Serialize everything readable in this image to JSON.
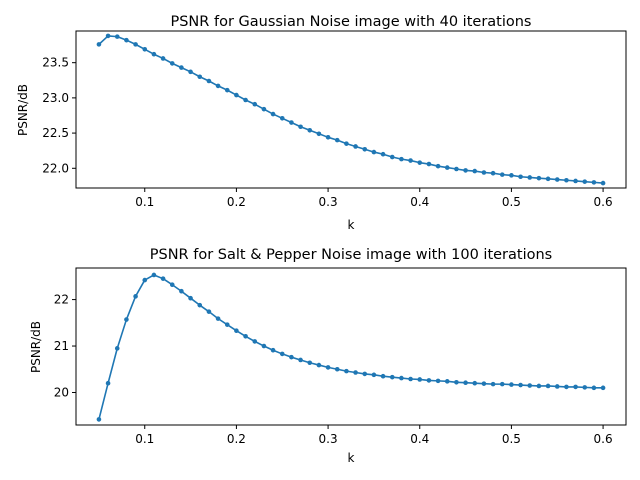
{
  "colors": {
    "series": "#1f77b4",
    "axes": "#000000",
    "background": "#ffffff"
  },
  "chart_data": [
    {
      "type": "line",
      "title": "PSNR for Gaussian Noise image with 40 iterations",
      "xlabel": "k",
      "ylabel": "PSNR/dB",
      "xlim": [
        0.025,
        0.625
      ],
      "ylim": [
        21.72,
        23.95
      ],
      "xticks": [
        0.1,
        0.2,
        0.3,
        0.4,
        0.5,
        0.6
      ],
      "xtick_labels": [
        "0.1",
        "0.2",
        "0.3",
        "0.4",
        "0.5",
        "0.6"
      ],
      "yticks": [
        22.0,
        22.5,
        23.0,
        23.5
      ],
      "ytick_labels": [
        "22.0",
        "22.5",
        "23.0",
        "23.5"
      ],
      "grid": false,
      "legend": "none",
      "marker": "circle",
      "series": [
        {
          "x": [
            0.05,
            0.06,
            0.07,
            0.08,
            0.09,
            0.1,
            0.11,
            0.12,
            0.13,
            0.14,
            0.15,
            0.16,
            0.17,
            0.18,
            0.19,
            0.2,
            0.21,
            0.22,
            0.23,
            0.24,
            0.25,
            0.26,
            0.27,
            0.28,
            0.29,
            0.3,
            0.31,
            0.32,
            0.33,
            0.34,
            0.35,
            0.36,
            0.37,
            0.38,
            0.39,
            0.4,
            0.41,
            0.42,
            0.43,
            0.44,
            0.45,
            0.46,
            0.47,
            0.48,
            0.49,
            0.5,
            0.51,
            0.52,
            0.53,
            0.54,
            0.55,
            0.56,
            0.57,
            0.58,
            0.59,
            0.6
          ],
          "y": [
            23.76,
            23.88,
            23.87,
            23.82,
            23.76,
            23.69,
            23.62,
            23.56,
            23.49,
            23.43,
            23.37,
            23.3,
            23.24,
            23.17,
            23.11,
            23.04,
            22.97,
            22.91,
            22.84,
            22.77,
            22.71,
            22.65,
            22.59,
            22.54,
            22.49,
            22.44,
            22.4,
            22.35,
            22.31,
            22.27,
            22.23,
            22.2,
            22.16,
            22.13,
            22.11,
            22.08,
            22.06,
            22.03,
            22.01,
            21.99,
            21.97,
            21.96,
            21.94,
            21.93,
            21.91,
            21.9,
            21.88,
            21.87,
            21.86,
            21.85,
            21.84,
            21.83,
            21.82,
            21.81,
            21.8,
            21.79
          ]
        }
      ]
    },
    {
      "type": "line",
      "title": "PSNR for Salt & Pepper Noise image with 100 iterations",
      "xlabel": "k",
      "ylabel": "PSNR/dB",
      "xlim": [
        0.025,
        0.625
      ],
      "ylim": [
        19.3,
        22.68
      ],
      "xticks": [
        0.1,
        0.2,
        0.3,
        0.4,
        0.5,
        0.6
      ],
      "xtick_labels": [
        "0.1",
        "0.2",
        "0.3",
        "0.4",
        "0.5",
        "0.6"
      ],
      "yticks": [
        20,
        21,
        22
      ],
      "ytick_labels": [
        "20",
        "21",
        "22"
      ],
      "grid": false,
      "legend": "none",
      "marker": "circle",
      "series": [
        {
          "x": [
            0.05,
            0.06,
            0.07,
            0.08,
            0.09,
            0.1,
            0.11,
            0.12,
            0.13,
            0.14,
            0.15,
            0.16,
            0.17,
            0.18,
            0.19,
            0.2,
            0.21,
            0.22,
            0.23,
            0.24,
            0.25,
            0.26,
            0.27,
            0.28,
            0.29,
            0.3,
            0.31,
            0.32,
            0.33,
            0.34,
            0.35,
            0.36,
            0.37,
            0.38,
            0.39,
            0.4,
            0.41,
            0.42,
            0.43,
            0.44,
            0.45,
            0.46,
            0.47,
            0.48,
            0.49,
            0.5,
            0.51,
            0.52,
            0.53,
            0.54,
            0.55,
            0.56,
            0.57,
            0.58,
            0.59,
            0.6
          ],
          "y": [
            19.42,
            20.2,
            20.95,
            21.57,
            22.07,
            22.42,
            22.53,
            22.45,
            22.32,
            22.18,
            22.03,
            21.88,
            21.74,
            21.59,
            21.46,
            21.33,
            21.21,
            21.1,
            21.0,
            20.91,
            20.83,
            20.76,
            20.7,
            20.64,
            20.59,
            20.54,
            20.5,
            20.46,
            20.43,
            20.4,
            20.38,
            20.35,
            20.33,
            20.31,
            20.29,
            20.28,
            20.26,
            20.25,
            20.24,
            20.22,
            20.21,
            20.2,
            20.19,
            20.18,
            20.18,
            20.17,
            20.16,
            20.15,
            20.14,
            20.14,
            20.13,
            20.12,
            20.12,
            20.11,
            20.1,
            20.1
          ]
        }
      ]
    }
  ]
}
